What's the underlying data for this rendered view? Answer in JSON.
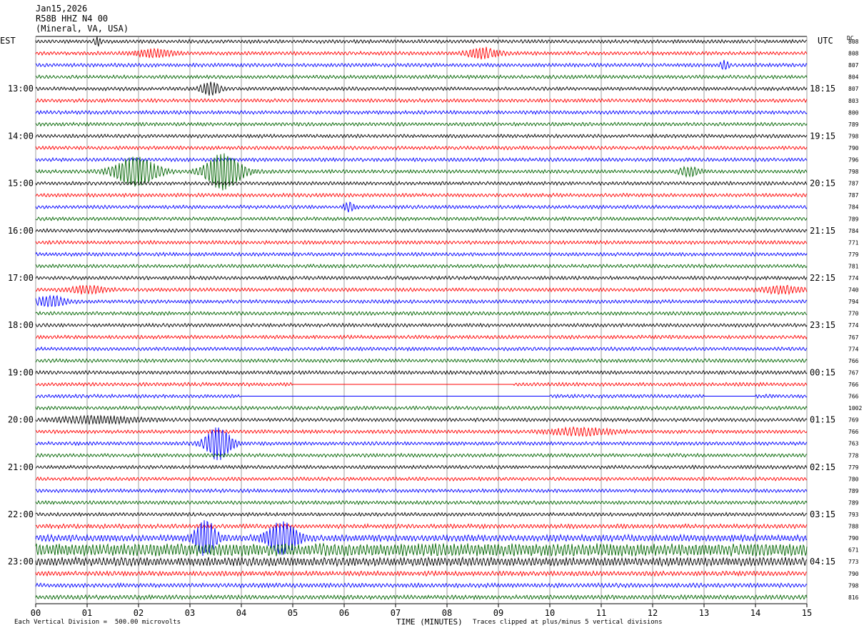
{
  "header": {
    "date": "Jan15,2026",
    "station": "R58B HHZ N4 00",
    "location": "(Mineral, VA, USA)"
  },
  "left_tz": "EST",
  "right_tz": "UTC",
  "dc_label": "DC",
  "footer": {
    "division": "Each Vertical Division =  500.00 microvolts",
    "xlabel": "TIME (MINUTES)",
    "clip": "Traces clipped at plus/minus 5 vertical divisions"
  },
  "colors": [
    "#000000",
    "#ff0000",
    "#0000ff",
    "#006400"
  ],
  "chart_data": {
    "type": "line",
    "title": "R58B HHZ N4 00 (Mineral, VA, USA)",
    "xlabel": "TIME (MINUTES)",
    "xlim": [
      0,
      15
    ],
    "x_ticks": [
      "00",
      "01",
      "02",
      "03",
      "04",
      "05",
      "06",
      "07",
      "08",
      "09",
      "10",
      "11",
      "12",
      "13",
      "14",
      "15"
    ],
    "left_hour_labels": [
      {
        "row": 4,
        "label": "13:00"
      },
      {
        "row": 8,
        "label": "14:00"
      },
      {
        "row": 12,
        "label": "15:00"
      },
      {
        "row": 16,
        "label": "16:00"
      },
      {
        "row": 20,
        "label": "17:00"
      },
      {
        "row": 24,
        "label": "18:00"
      },
      {
        "row": 28,
        "label": "19:00"
      },
      {
        "row": 32,
        "label": "20:00"
      },
      {
        "row": 36,
        "label": "21:00"
      },
      {
        "row": 40,
        "label": "22:00"
      },
      {
        "row": 44,
        "label": "23:00"
      }
    ],
    "right_hour_labels": [
      {
        "row": 4,
        "label": "18:15"
      },
      {
        "row": 8,
        "label": "19:15"
      },
      {
        "row": 12,
        "label": "20:15"
      },
      {
        "row": 16,
        "label": "21:15"
      },
      {
        "row": 20,
        "label": "22:15"
      },
      {
        "row": 24,
        "label": "23:15"
      },
      {
        "row": 28,
        "label": "00:15"
      },
      {
        "row": 32,
        "label": "01:15"
      },
      {
        "row": 36,
        "label": "02:15"
      },
      {
        "row": 40,
        "label": "03:15"
      },
      {
        "row": 44,
        "label": "04:15"
      }
    ],
    "dc_offsets": [
      808,
      808,
      807,
      804,
      807,
      803,
      800,
      789,
      798,
      790,
      796,
      798,
      787,
      787,
      784,
      789,
      784,
      771,
      779,
      781,
      774,
      740,
      794,
      770,
      774,
      767,
      774,
      766,
      767,
      766,
      766,
      1002,
      769,
      766,
      763,
      778,
      779,
      780,
      789,
      789,
      793,
      788,
      790,
      671,
      773,
      790,
      798,
      816
    ],
    "amplitudes": [
      1,
      1,
      1,
      1,
      1,
      1,
      1,
      1,
      1,
      1,
      1,
      1,
      1,
      1,
      1,
      1,
      1,
      1,
      1,
      1,
      1,
      1,
      1,
      1,
      1,
      1,
      1,
      1,
      1,
      1,
      1,
      1,
      1,
      1,
      1,
      1,
      1,
      1,
      1,
      1,
      1,
      1.2,
      1.8,
      3.5,
      2.4,
      1.3,
      1.2,
      1.2
    ],
    "events": [
      {
        "row": 0,
        "minute": 1.2,
        "amp": 2.5,
        "width": 0.06
      },
      {
        "row": 1,
        "minute": 2.3,
        "amp": 2.2,
        "width": 0.35
      },
      {
        "row": 1,
        "minute": 8.7,
        "amp": 3.0,
        "width": 0.3
      },
      {
        "row": 2,
        "minute": 13.4,
        "amp": 2.5,
        "width": 0.08
      },
      {
        "row": 4,
        "minute": 3.4,
        "amp": 3.5,
        "width": 0.2
      },
      {
        "row": 11,
        "minute": 1.95,
        "amp": 9.0,
        "width": 0.4
      },
      {
        "row": 11,
        "minute": 3.65,
        "amp": 11.0,
        "width": 0.35
      },
      {
        "row": 11,
        "minute": 12.7,
        "amp": 2.5,
        "width": 0.2
      },
      {
        "row": 14,
        "minute": 6.1,
        "amp": 2.5,
        "width": 0.1
      },
      {
        "row": 21,
        "minute": 1.0,
        "amp": 2.0,
        "width": 0.35
      },
      {
        "row": 21,
        "minute": 14.5,
        "amp": 2.0,
        "width": 0.4
      },
      {
        "row": 22,
        "minute": 0.3,
        "amp": 3.0,
        "width": 0.3
      },
      {
        "row": 32,
        "minute": 1.2,
        "amp": 2.0,
        "width": 0.8
      },
      {
        "row": 33,
        "minute": 10.6,
        "amp": 2.0,
        "width": 0.6
      },
      {
        "row": 34,
        "minute": 3.55,
        "amp": 10.0,
        "width": 0.25
      },
      {
        "row": 42,
        "minute": 3.3,
        "amp": 6.0,
        "width": 0.2
      },
      {
        "row": 42,
        "minute": 4.8,
        "amp": 5.0,
        "width": 0.3
      }
    ],
    "gaps": [
      {
        "row": 29,
        "from": 5.0,
        "to": 9.3
      },
      {
        "row": 30,
        "from": 4.0,
        "to": 10.0
      },
      {
        "row": 30,
        "from": 13.0,
        "to": 14.0
      }
    ]
  }
}
